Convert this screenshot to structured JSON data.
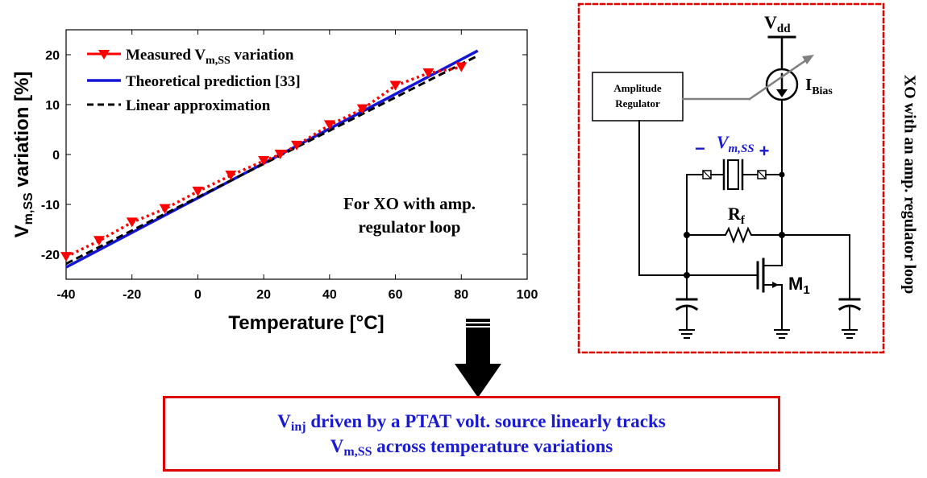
{
  "chart_data": {
    "type": "line",
    "xlabel": "Temperature [°C]",
    "ylabel": {
      "main": "V",
      "sub": "m,SS",
      "rest": " variation [%]"
    },
    "xlim": [
      -40,
      100
    ],
    "ylim": [
      -25,
      25
    ],
    "xticks": [
      "-40",
      "-20",
      "0",
      "20",
      "40",
      "60",
      "80",
      "100"
    ],
    "yticks": [
      "-20",
      "-10",
      "0",
      "10",
      "20"
    ],
    "grid": false,
    "legend_position": "top-left",
    "series": [
      {
        "name": {
          "main": "Measured V",
          "sub": "m,SS",
          "rest": " variation"
        },
        "style": "dotted-triangle",
        "color": "#ff0000",
        "x": [
          -40,
          -30,
          -20,
          -10,
          0,
          10,
          20,
          25,
          30,
          40,
          50,
          60,
          70,
          80
        ],
        "y": [
          -20.5,
          -17.3,
          -13.6,
          -10.9,
          -7.4,
          -4.2,
          -1.3,
          0.0,
          1.8,
          5.9,
          9.1,
          13.8,
          16.3,
          17.5
        ]
      },
      {
        "name": {
          "main": "Theoretical prediction [33]",
          "sub": "",
          "rest": ""
        },
        "style": "solid",
        "color": "#1515d5",
        "x": [
          -40,
          85
        ],
        "y": [
          -22.6,
          20.8
        ]
      },
      {
        "name": {
          "main": "Linear approximation",
          "sub": "",
          "rest": ""
        },
        "style": "dashed",
        "color": "#000000",
        "x": [
          -40,
          85
        ],
        "y": [
          -21.9,
          19.8
        ]
      }
    ],
    "annotation": [
      "For XO with amp.",
      "regulator loop"
    ]
  },
  "circuit": {
    "vdd": {
      "main": "V",
      "sub": "dd"
    },
    "ibias": {
      "main": "I",
      "sub": "Bias"
    },
    "regulator": [
      "Amplitude",
      "Regulator"
    ],
    "vm": {
      "minus": "−",
      "main": "V",
      "sub": "m,SS",
      "plus": "+"
    },
    "rf": {
      "main": "R",
      "sub": "f"
    },
    "m1": {
      "main": "M",
      "sub": "1"
    },
    "title": "XO with an amp. regulator loop"
  },
  "banner": {
    "line1": {
      "main": "V",
      "sub": "inj",
      "rest": " driven by a PTAT volt. source linearly tracks"
    },
    "line2": {
      "main": "V",
      "sub": "m,SS",
      "rest": " across temperature variations"
    }
  },
  "colors": {
    "measured": "#ff0000",
    "theory": "#1515d5",
    "linear": "#000000",
    "frame": "#e00000",
    "accent": "#1a1ad0"
  }
}
